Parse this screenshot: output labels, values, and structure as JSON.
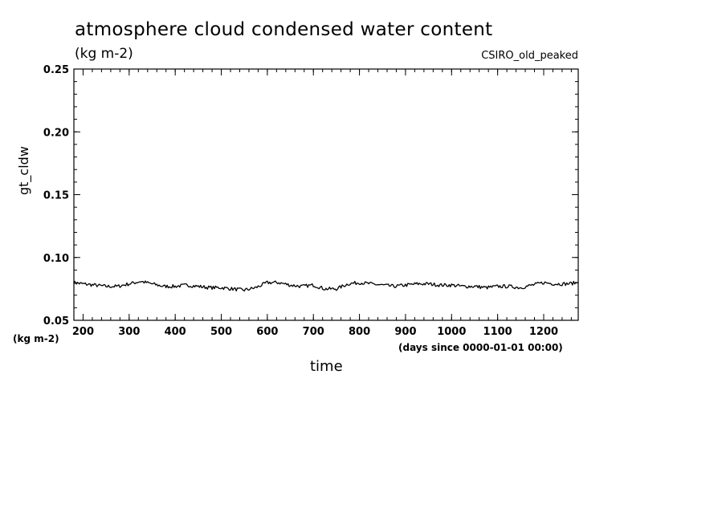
{
  "header": {
    "title": "atmosphere cloud condensed water content",
    "units": "(kg m-2)",
    "model": "CSIRO_old_peaked"
  },
  "axes": {
    "y_name": "gt_cldw",
    "y_units": "(kg m-2)",
    "x_name": "time",
    "x_units": "(days since 0000-01-01 00:00)"
  },
  "chart_data": {
    "type": "line",
    "title": "atmosphere cloud condensed water content",
    "xlabel": "time",
    "ylabel": "gt_cldw",
    "xlim": [
      180,
      1275
    ],
    "ylim": [
      0.05,
      0.25
    ],
    "x_ticks": [
      200,
      300,
      400,
      500,
      600,
      700,
      800,
      900,
      1000,
      1100,
      1200
    ],
    "y_ticks": [
      0.05,
      0.1,
      0.15,
      0.2,
      0.25
    ],
    "y_tick_labels": [
      "0.05",
      "0.10",
      "0.15",
      "0.20",
      "0.25"
    ],
    "grid": false,
    "line_color": "#000000",
    "series": [
      {
        "x": [
          180,
          200,
          225,
          250,
          275,
          300,
          325,
          350,
          375,
          400,
          425,
          450,
          475,
          500,
          525,
          550,
          575,
          600,
          625,
          650,
          675,
          700,
          725,
          750,
          775,
          800,
          825,
          850,
          875,
          900,
          925,
          950,
          975,
          1000,
          1025,
          1050,
          1075,
          1100,
          1125,
          1150,
          1175,
          1200,
          1225,
          1250,
          1275
        ],
        "y": [
          0.08,
          0.079,
          0.078,
          0.077,
          0.077,
          0.079,
          0.081,
          0.079,
          0.077,
          0.077,
          0.078,
          0.077,
          0.076,
          0.076,
          0.075,
          0.074,
          0.076,
          0.08,
          0.08,
          0.078,
          0.077,
          0.078,
          0.075,
          0.075,
          0.079,
          0.08,
          0.079,
          0.078,
          0.077,
          0.078,
          0.079,
          0.079,
          0.078,
          0.078,
          0.077,
          0.077,
          0.076,
          0.077,
          0.077,
          0.076,
          0.078,
          0.08,
          0.079,
          0.079,
          0.08
        ]
      }
    ]
  }
}
